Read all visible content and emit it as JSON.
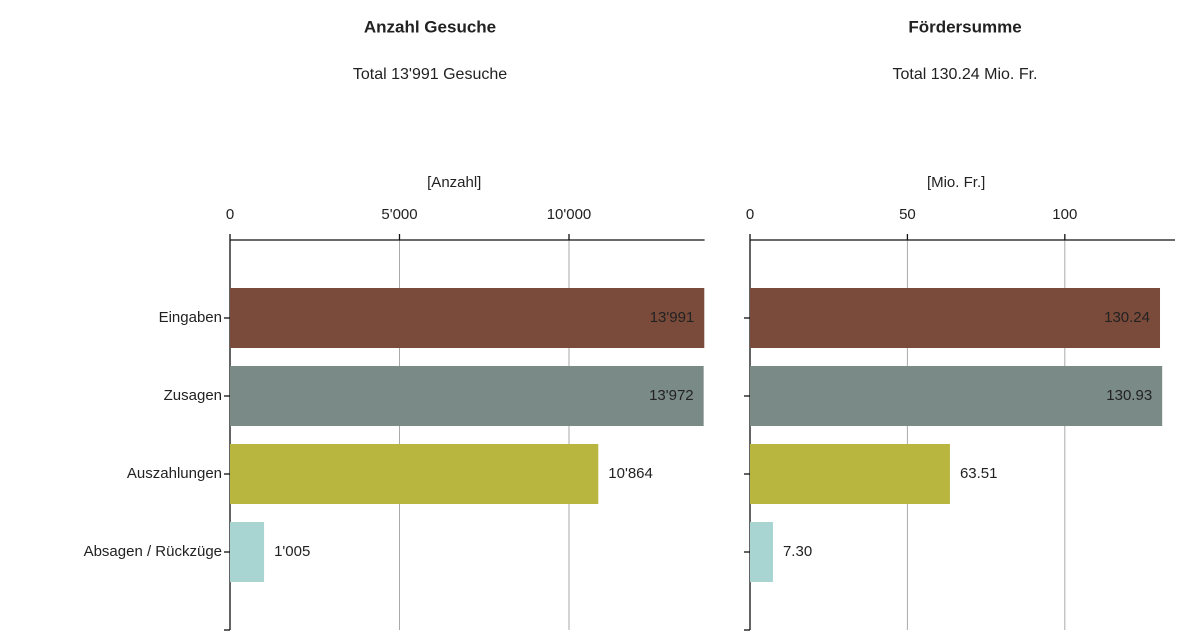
{
  "chart_data": [
    {
      "type": "bar",
      "orientation": "horizontal",
      "title": "Anzahl Gesuche",
      "subtitle": "Total 13'991 Gesuche",
      "x_label": "[Anzahl]",
      "categories": [
        "Eingaben",
        "Zusagen",
        "Auszahlungen",
        "Absagen / Rückzüge"
      ],
      "values": [
        13991,
        13972,
        10864,
        1005
      ],
      "value_labels": [
        "13'991",
        "13'972",
        "10'864",
        "1'005"
      ],
      "colors": [
        "#7a4b3a",
        "#7a8a87",
        "#b9b640",
        "#a8d5d2"
      ],
      "xlim": [
        0,
        14000
      ],
      "xticks": [
        0,
        {
          "value": 5000,
          "label": "5'000"
        },
        {
          "value": 10000,
          "label": "10'000"
        }
      ],
      "grid": true
    },
    {
      "type": "bar",
      "orientation": "horizontal",
      "title": "Fördersumme",
      "subtitle": "Total 130.24 Mio. Fr.",
      "x_label": "[Mio. Fr.]",
      "values": [
        130.24,
        130.93,
        63.51,
        7.3
      ],
      "value_labels": [
        "130.24",
        "130.93",
        "63.51",
        "7.30"
      ],
      "colors": [
        "#7a4b3a",
        "#7a8a87",
        "#b9b640",
        "#a8d5d2"
      ],
      "xlim": [
        0,
        135
      ],
      "xticks": [
        0,
        50,
        100
      ],
      "grid": true
    }
  ]
}
